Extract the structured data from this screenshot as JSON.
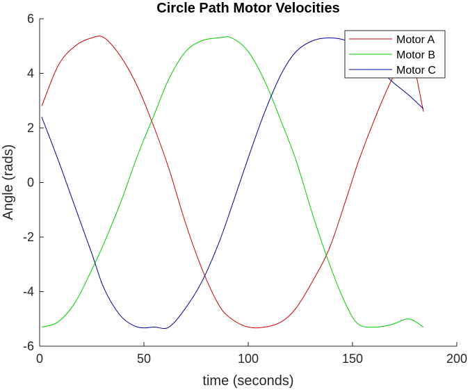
{
  "chart_data": {
    "type": "line",
    "title": "Circle Path Motor Velocities",
    "xlabel": "time (seconds)",
    "ylabel": "Angle (rads)",
    "xlim": [
      0,
      200
    ],
    "ylim": [
      -6,
      6
    ],
    "xticks": [
      0,
      50,
      100,
      150,
      200
    ],
    "xtick_labels": [
      "0",
      "50",
      "100",
      "150",
      "200"
    ],
    "yticks": [
      -6,
      -4,
      -2,
      0,
      2,
      4,
      6
    ],
    "ytick_labels": [
      "-6",
      "-4",
      "-2",
      "0",
      "2",
      "4",
      "6"
    ],
    "grid": false,
    "legend_position": "top-right",
    "x": [
      1,
      9,
      17,
      25,
      31,
      39,
      47,
      55,
      62,
      70,
      78,
      86,
      92,
      100,
      108,
      116,
      123,
      131,
      139,
      147,
      153,
      161,
      169,
      177,
      184
    ],
    "series": [
      {
        "name": "Motor A",
        "color": "#cc0000",
        "values": [
          2.8,
          4.3,
          5.0,
          5.3,
          5.3,
          4.6,
          3.5,
          2.0,
          0.5,
          -1.5,
          -3.2,
          -4.5,
          -5.0,
          -5.3,
          -5.3,
          -5.1,
          -4.6,
          -3.6,
          -2.4,
          -0.6,
          0.8,
          2.4,
          3.8,
          4.8,
          2.6
        ]
      },
      {
        "name": "Motor B",
        "color": "#00cc00",
        "values": [
          -5.3,
          -5.1,
          -4.4,
          -3.2,
          -2.2,
          -0.7,
          1.0,
          2.5,
          3.8,
          4.8,
          5.2,
          5.3,
          5.3,
          4.8,
          3.7,
          2.2,
          0.8,
          -1.2,
          -3.0,
          -4.5,
          -5.2,
          -5.3,
          -5.2,
          -5.0,
          -5.3
        ]
      },
      {
        "name": "Motor C",
        "color": "#000099",
        "values": [
          2.4,
          0.8,
          -0.9,
          -2.6,
          -3.9,
          -4.9,
          -5.3,
          -5.3,
          -5.3,
          -4.6,
          -3.6,
          -2.2,
          -0.9,
          0.9,
          2.6,
          4.0,
          4.8,
          5.2,
          5.3,
          5.2,
          4.9,
          4.3,
          3.7,
          3.2,
          2.7
        ]
      }
    ]
  }
}
